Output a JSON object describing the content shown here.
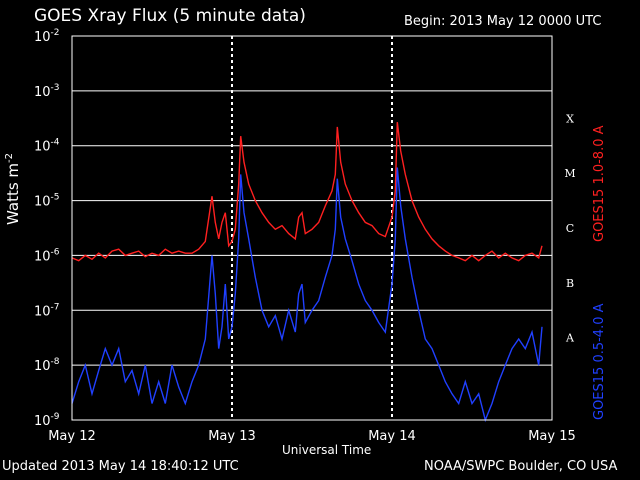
{
  "header": {
    "title": "GOES Xray Flux (5 minute data)",
    "begin": "Begin:  2013 May 12 0000 UTC"
  },
  "footer": {
    "updated": "Updated 2013 May 14 18:40:12 UTC",
    "credit": "NOAA/SWPC Boulder, CO USA"
  },
  "colors": {
    "long": "#ff2020",
    "short": "#2040ff",
    "grid": "#ffffff",
    "background": "#000000"
  },
  "chart_data": {
    "type": "line",
    "title": "GOES Xray Flux (5 minute data)",
    "xlabel": "Universal Time",
    "ylabel": "Watts m",
    "ylabel_sup": "-2",
    "yscale": "log",
    "ylim": [
      1e-09,
      0.01
    ],
    "xlim": [
      0,
      72
    ],
    "x_unit": "hours since 2013 May 12 0000 UTC",
    "x_ticks": [
      {
        "x": 0,
        "label": "May 12"
      },
      {
        "x": 24,
        "label": "May 13"
      },
      {
        "x": 48,
        "label": "May 14"
      },
      {
        "x": 72,
        "label": "May 15"
      }
    ],
    "y_ticks": [
      {
        "value": 0.01,
        "base": "10",
        "exp": "-2"
      },
      {
        "value": 0.001,
        "base": "10",
        "exp": "-3"
      },
      {
        "value": 0.0001,
        "base": "10",
        "exp": "-4"
      },
      {
        "value": 1e-05,
        "base": "10",
        "exp": "-5"
      },
      {
        "value": 1e-06,
        "base": "10",
        "exp": "-6"
      },
      {
        "value": 1e-07,
        "base": "10",
        "exp": "-7"
      },
      {
        "value": 1e-08,
        "base": "10",
        "exp": "-8"
      },
      {
        "value": 1e-09,
        "base": "10",
        "exp": "-9"
      }
    ],
    "grid": "horizontal solid at each decade; vertical dotted at day boundaries",
    "flare_classes": [
      {
        "label": "X",
        "value": 0.000316
      },
      {
        "label": "M",
        "value": 3.16e-05
      },
      {
        "label": "C",
        "value": 3.16e-06
      },
      {
        "label": "B",
        "value": 3.16e-07
      },
      {
        "label": "A",
        "value": 3.16e-08
      }
    ],
    "series": [
      {
        "name": "GOES15 1.0-8.0 A",
        "color": "#ff2020",
        "points": [
          [
            0,
            9e-07
          ],
          [
            1,
            8e-07
          ],
          [
            2,
            1e-06
          ],
          [
            3,
            8.5e-07
          ],
          [
            4,
            1.1e-06
          ],
          [
            5,
            9e-07
          ],
          [
            6,
            1.2e-06
          ],
          [
            7,
            1.3e-06
          ],
          [
            8,
            1e-06
          ],
          [
            9,
            1.1e-06
          ],
          [
            10,
            1.2e-06
          ],
          [
            11,
            9.5e-07
          ],
          [
            12,
            1.1e-06
          ],
          [
            13,
            1e-06
          ],
          [
            14,
            1.3e-06
          ],
          [
            15,
            1.1e-06
          ],
          [
            16,
            1.2e-06
          ],
          [
            17,
            1.1e-06
          ],
          [
            18,
            1.1e-06
          ],
          [
            19,
            1.3e-06
          ],
          [
            20,
            1.8e-06
          ],
          [
            21,
            1.2e-05
          ],
          [
            21.5,
            4e-06
          ],
          [
            22,
            2e-06
          ],
          [
            22.5,
            4e-06
          ],
          [
            23,
            6e-06
          ],
          [
            23.5,
            1.5e-06
          ],
          [
            24,
            1.8e-06
          ],
          [
            24.5,
            3e-06
          ],
          [
            25,
            2e-05
          ],
          [
            25.3,
            0.00015
          ],
          [
            25.8,
            5e-05
          ],
          [
            26.5,
            2e-05
          ],
          [
            27.5,
            1e-05
          ],
          [
            28.5,
            6e-06
          ],
          [
            29.5,
            4e-06
          ],
          [
            30.5,
            3e-06
          ],
          [
            31.5,
            3.5e-06
          ],
          [
            32.5,
            2.5e-06
          ],
          [
            33.5,
            2e-06
          ],
          [
            34,
            5e-06
          ],
          [
            34.5,
            6e-06
          ],
          [
            35,
            2.5e-06
          ],
          [
            36,
            3e-06
          ],
          [
            37,
            4e-06
          ],
          [
            38,
            8e-06
          ],
          [
            39,
            1.5e-05
          ],
          [
            39.5,
            3e-05
          ],
          [
            39.8,
            0.00022
          ],
          [
            40.3,
            5e-05
          ],
          [
            41,
            2e-05
          ],
          [
            42,
            1e-05
          ],
          [
            43,
            6e-06
          ],
          [
            44,
            4e-06
          ],
          [
            45,
            3.5e-06
          ],
          [
            46,
            2.5e-06
          ],
          [
            47,
            2.2e-06
          ],
          [
            48,
            5e-06
          ],
          [
            48.5,
            1.5e-05
          ],
          [
            48.8,
            0.00027
          ],
          [
            49.3,
            8e-05
          ],
          [
            50,
            3e-05
          ],
          [
            51,
            1e-05
          ],
          [
            52,
            5e-06
          ],
          [
            53,
            3e-06
          ],
          [
            54,
            2e-06
          ],
          [
            55,
            1.5e-06
          ],
          [
            56,
            1.2e-06
          ],
          [
            57,
            1e-06
          ],
          [
            58,
            9e-07
          ],
          [
            59,
            8e-07
          ],
          [
            60,
            1e-06
          ],
          [
            61,
            8e-07
          ],
          [
            62,
            1e-06
          ],
          [
            63,
            1.2e-06
          ],
          [
            64,
            9e-07
          ],
          [
            65,
            1.1e-06
          ],
          [
            66,
            9e-07
          ],
          [
            67,
            8e-07
          ],
          [
            68,
            1e-06
          ],
          [
            69,
            1.1e-06
          ],
          [
            70,
            9e-07
          ],
          [
            70.5,
            1.5e-06
          ]
        ]
      },
      {
        "name": "GOES15 0.5-4.0 A",
        "color": "#2040ff",
        "points": [
          [
            0,
            2e-09
          ],
          [
            1,
            5e-09
          ],
          [
            2,
            1e-08
          ],
          [
            3,
            3e-09
          ],
          [
            4,
            8e-09
          ],
          [
            5,
            2e-08
          ],
          [
            6,
            1e-08
          ],
          [
            7,
            2e-08
          ],
          [
            8,
            5e-09
          ],
          [
            9,
            8e-09
          ],
          [
            10,
            3e-09
          ],
          [
            11,
            1e-08
          ],
          [
            12,
            2e-09
          ],
          [
            13,
            5e-09
          ],
          [
            14,
            2e-09
          ],
          [
            15,
            1e-08
          ],
          [
            16,
            4e-09
          ],
          [
            17,
            2e-09
          ],
          [
            18,
            5e-09
          ],
          [
            19,
            1e-08
          ],
          [
            20,
            3e-08
          ],
          [
            21,
            1e-06
          ],
          [
            21.5,
            2e-07
          ],
          [
            22,
            2e-08
          ],
          [
            22.5,
            5e-08
          ],
          [
            23,
            3e-07
          ],
          [
            23.5,
            3e-08
          ],
          [
            24,
            5e-08
          ],
          [
            24.5,
            2e-07
          ],
          [
            25,
            2e-06
          ],
          [
            25.3,
            3e-05
          ],
          [
            25.8,
            6e-06
          ],
          [
            26.5,
            2e-06
          ],
          [
            27.5,
            4e-07
          ],
          [
            28.5,
            1e-07
          ],
          [
            29.5,
            5e-08
          ],
          [
            30.5,
            8e-08
          ],
          [
            31.5,
            3e-08
          ],
          [
            32.5,
            1e-07
          ],
          [
            33.5,
            4e-08
          ],
          [
            34,
            2e-07
          ],
          [
            34.5,
            3e-07
          ],
          [
            35,
            6e-08
          ],
          [
            36,
            1e-07
          ],
          [
            37,
            1.5e-07
          ],
          [
            38,
            4e-07
          ],
          [
            39,
            1e-06
          ],
          [
            39.5,
            3e-06
          ],
          [
            39.8,
            2.5e-05
          ],
          [
            40.3,
            5e-06
          ],
          [
            41,
            2e-06
          ],
          [
            42,
            8e-07
          ],
          [
            43,
            3e-07
          ],
          [
            44,
            1.5e-07
          ],
          [
            45,
            1e-07
          ],
          [
            46,
            6e-08
          ],
          [
            47,
            4e-08
          ],
          [
            48,
            3e-07
          ],
          [
            48.5,
            2e-06
          ],
          [
            48.8,
            4e-05
          ],
          [
            49.3,
            8e-06
          ],
          [
            50,
            2e-06
          ],
          [
            51,
            4e-07
          ],
          [
            52,
            1e-07
          ],
          [
            53,
            3e-08
          ],
          [
            54,
            2e-08
          ],
          [
            55,
            1e-08
          ],
          [
            56,
            5e-09
          ],
          [
            57,
            3e-09
          ],
          [
            58,
            2e-09
          ],
          [
            59,
            5e-09
          ],
          [
            60,
            2e-09
          ],
          [
            61,
            3e-09
          ],
          [
            62,
            1e-09
          ],
          [
            63,
            2e-09
          ],
          [
            64,
            5e-09
          ],
          [
            65,
            1e-08
          ],
          [
            66,
            2e-08
          ],
          [
            67,
            3e-08
          ],
          [
            68,
            2e-08
          ],
          [
            69,
            4e-08
          ],
          [
            70,
            1e-08
          ],
          [
            70.5,
            5e-08
          ]
        ]
      }
    ]
  }
}
